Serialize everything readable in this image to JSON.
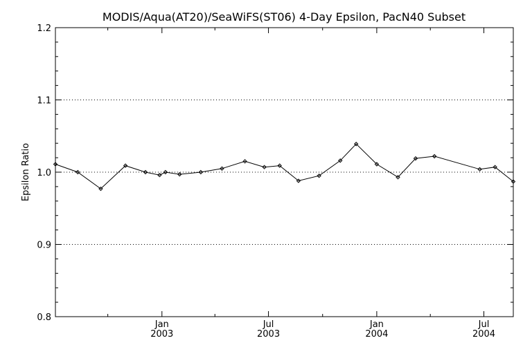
{
  "chart_data": {
    "type": "line",
    "title": "MODIS/Aqua(AT20)/SeaWiFS(ST06) 4-Day Epsilon, PacN40 Subset",
    "xlabel": "",
    "ylabel": "Epsilon Ratio",
    "ylim": [
      0.8,
      1.2
    ],
    "xlim": [
      "2002-07-04",
      "2004-08-20"
    ],
    "y_ticks": [
      "0.8",
      "0.9",
      "1.0",
      "1.1",
      "1.2"
    ],
    "y_gridlines": [
      0.9,
      1.0,
      1.1
    ],
    "x_major_ticks": [
      {
        "date": "2003-01-01",
        "line1": "Jan",
        "line2": "2003"
      },
      {
        "date": "2003-07-01",
        "line1": "Jul",
        "line2": "2003"
      },
      {
        "date": "2004-01-01",
        "line1": "Jan",
        "line2": "2004"
      },
      {
        "date": "2004-07-01",
        "line1": "Jul",
        "line2": "2004"
      }
    ],
    "x_minor_ticks": [
      "2002-10-01",
      "2003-04-01",
      "2003-10-01",
      "2004-04-01"
    ],
    "series": [
      {
        "color": "#000000",
        "marker": "diamond",
        "points": [
          {
            "x": "2002-07-04",
            "y": 1.011
          },
          {
            "x": "2002-08-11",
            "y": 1.0
          },
          {
            "x": "2002-09-19",
            "y": 0.977
          },
          {
            "x": "2002-10-31",
            "y": 1.009
          },
          {
            "x": "2002-12-04",
            "y": 1.0
          },
          {
            "x": "2002-12-28",
            "y": 0.996
          },
          {
            "x": "2003-01-07",
            "y": 1.0
          },
          {
            "x": "2003-01-31",
            "y": 0.997
          },
          {
            "x": "2003-03-08",
            "y": 1.0
          },
          {
            "x": "2003-04-13",
            "y": 1.005
          },
          {
            "x": "2003-05-22",
            "y": 1.015
          },
          {
            "x": "2003-06-24",
            "y": 1.007
          },
          {
            "x": "2003-07-20",
            "y": 1.009
          },
          {
            "x": "2003-08-21",
            "y": 0.988
          },
          {
            "x": "2003-09-25",
            "y": 0.995
          },
          {
            "x": "2003-10-31",
            "y": 1.016
          },
          {
            "x": "2003-11-27",
            "y": 1.039
          },
          {
            "x": "2004-01-01",
            "y": 1.011
          },
          {
            "x": "2004-02-06",
            "y": 0.993
          },
          {
            "x": "2004-03-07",
            "y": 1.019
          },
          {
            "x": "2004-04-08",
            "y": 1.022
          },
          {
            "x": "2004-06-24",
            "y": 1.004
          },
          {
            "x": "2004-07-20",
            "y": 1.007
          },
          {
            "x": "2004-08-20",
            "y": 0.987
          }
        ]
      }
    ]
  }
}
